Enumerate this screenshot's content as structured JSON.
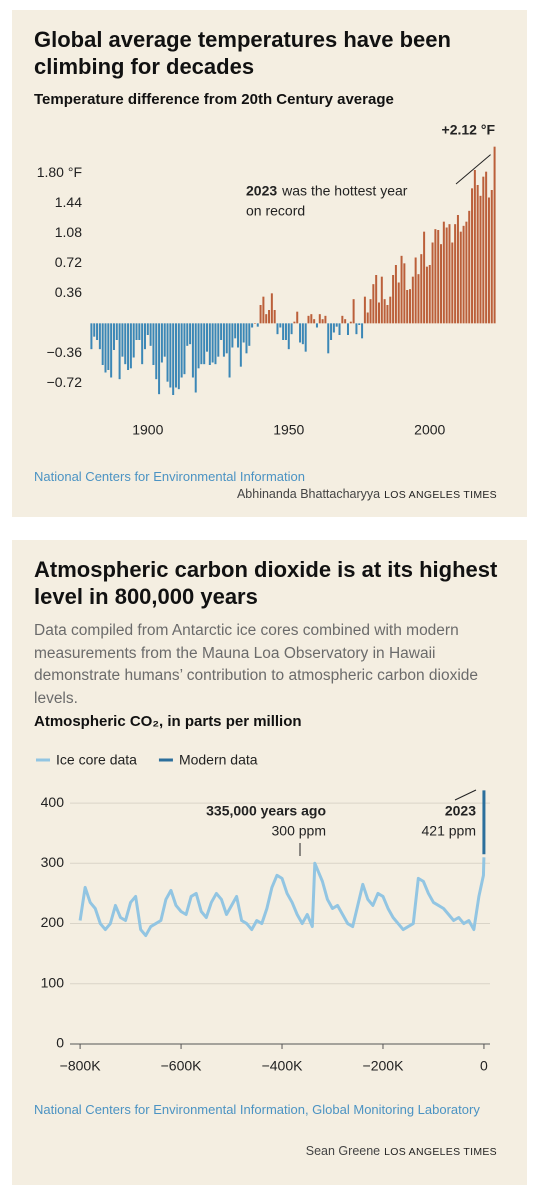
{
  "chart_data": [
    {
      "type": "bar",
      "title": "Global average temperatures have been climbing for decades",
      "subtitle": "Temperature difference from 20th Century average",
      "x": [
        1880,
        1881,
        1882,
        1883,
        1884,
        1885,
        1886,
        1887,
        1888,
        1889,
        1890,
        1891,
        1892,
        1893,
        1894,
        1895,
        1896,
        1897,
        1898,
        1899,
        1900,
        1901,
        1902,
        1903,
        1904,
        1905,
        1906,
        1907,
        1908,
        1909,
        1910,
        1911,
        1912,
        1913,
        1914,
        1915,
        1916,
        1917,
        1918,
        1919,
        1920,
        1921,
        1922,
        1923,
        1924,
        1925,
        1926,
        1927,
        1928,
        1929,
        1930,
        1931,
        1932,
        1933,
        1934,
        1935,
        1936,
        1937,
        1938,
        1939,
        1940,
        1941,
        1942,
        1943,
        1944,
        1945,
        1946,
        1947,
        1948,
        1949,
        1950,
        1951,
        1952,
        1953,
        1954,
        1955,
        1956,
        1957,
        1958,
        1959,
        1960,
        1961,
        1962,
        1963,
        1964,
        1965,
        1966,
        1967,
        1968,
        1969,
        1970,
        1971,
        1972,
        1973,
        1974,
        1975,
        1976,
        1977,
        1978,
        1979,
        1980,
        1981,
        1982,
        1983,
        1984,
        1985,
        1986,
        1987,
        1988,
        1989,
        1990,
        1991,
        1992,
        1993,
        1994,
        1995,
        1996,
        1997,
        1998,
        1999,
        2000,
        2001,
        2002,
        2003,
        2004,
        2005,
        2006,
        2007,
        2008,
        2009,
        2010,
        2011,
        2012,
        2013,
        2014,
        2015,
        2016,
        2017,
        2018,
        2019,
        2020,
        2021,
        2022,
        2023
      ],
      "values": [
        -0.31,
        -0.16,
        -0.2,
        -0.31,
        -0.5,
        -0.59,
        -0.56,
        -0.65,
        -0.32,
        -0.2,
        -0.67,
        -0.4,
        -0.49,
        -0.56,
        -0.54,
        -0.41,
        -0.2,
        -0.2,
        -0.49,
        -0.31,
        -0.14,
        -0.27,
        -0.5,
        -0.67,
        -0.85,
        -0.47,
        -0.4,
        -0.7,
        -0.77,
        -0.86,
        -0.77,
        -0.79,
        -0.65,
        -0.61,
        -0.27,
        -0.25,
        -0.65,
        -0.83,
        -0.54,
        -0.49,
        -0.49,
        -0.34,
        -0.5,
        -0.47,
        -0.49,
        -0.4,
        -0.2,
        -0.4,
        -0.36,
        -0.65,
        -0.29,
        -0.18,
        -0.29,
        -0.52,
        -0.23,
        -0.36,
        -0.27,
        -0.05,
        0,
        -0.04,
        0.22,
        0.32,
        0.11,
        0.16,
        0.36,
        0.16,
        -0.13,
        -0.05,
        -0.2,
        -0.2,
        -0.31,
        -0.13,
        0.02,
        0.14,
        -0.23,
        -0.25,
        -0.34,
        0.09,
        0.11,
        0.05,
        -0.05,
        0.11,
        0.05,
        0.09,
        -0.36,
        -0.2,
        -0.11,
        -0.04,
        -0.14,
        0.09,
        0.05,
        -0.14,
        0.02,
        0.29,
        -0.13,
        -0.02,
        -0.18,
        0.32,
        0.13,
        0.29,
        0.47,
        0.58,
        0.25,
        0.56,
        0.29,
        0.22,
        0.32,
        0.58,
        0.7,
        0.49,
        0.81,
        0.72,
        0.4,
        0.41,
        0.56,
        0.79,
        0.59,
        0.83,
        1.1,
        0.68,
        0.7,
        0.97,
        1.13,
        1.12,
        0.95,
        1.22,
        1.15,
        1.19,
        0.97,
        1.19,
        1.3,
        1.1,
        1.17,
        1.22,
        1.35,
        1.62,
        1.84,
        1.66,
        1.53,
        1.76,
        1.82,
        1.51,
        1.6,
        2.12
      ],
      "colors": {
        "positive": "#bb5f3a",
        "negative": "#3b87b6"
      },
      "xlim": [
        1879.5,
        2023.5
      ],
      "xticks": [
        1900,
        1950,
        2000
      ],
      "ylim": [
        -0.92,
        2.2
      ],
      "yticks": [
        {
          "value": 1.8,
          "label": "1.80 °F"
        },
        1.44,
        1.08,
        0.72,
        0.36,
        {
          "value": -0.36,
          "label": "−0.36"
        },
        {
          "value": -0.72,
          "label": "−0.72"
        }
      ],
      "grid": false,
      "peak_label": "+2.12 °F",
      "annotation": {
        "bold": "2023",
        "lines": [
          "was the hottest year",
          "on record"
        ]
      },
      "source": "National Centers for Environmental Information",
      "credit": "Abhinanda Bhattacharyya",
      "publisher": "LOS ANGELES TIMES"
    },
    {
      "type": "line",
      "title": "Atmospheric carbon dioxide is at its highest level in 800,000 years",
      "description": "Data compiled from Antarctic ice cores combined with modern measurements from the Mauna Loa Observatory in Hawaii demonstrate humans’ contribution to atmospheric carbon dioxide levels.",
      "y_label": "Atmospheric CO₂, in parts per million",
      "series": [
        {
          "name": "Ice core data",
          "color": "#92c5e2",
          "x": [
            -800000,
            -790000,
            -780000,
            -770000,
            -760000,
            -750000,
            -740000,
            -730000,
            -720000,
            -710000,
            -700000,
            -690000,
            -680000,
            -670000,
            -660000,
            -650000,
            -640000,
            -630000,
            -620000,
            -610000,
            -600000,
            -590000,
            -580000,
            -570000,
            -560000,
            -550000,
            -540000,
            -530000,
            -520000,
            -510000,
            -500000,
            -490000,
            -480000,
            -470000,
            -460000,
            -450000,
            -440000,
            -430000,
            -420000,
            -410000,
            -400000,
            -390000,
            -380000,
            -370000,
            -360000,
            -350000,
            -340000,
            -335000,
            -320000,
            -310000,
            -300000,
            -290000,
            -280000,
            -270000,
            -260000,
            -250000,
            -240000,
            -230000,
            -220000,
            -210000,
            -200000,
            -190000,
            -180000,
            -170000,
            -160000,
            -150000,
            -140000,
            -130000,
            -120000,
            -110000,
            -100000,
            -90000,
            -80000,
            -70000,
            -60000,
            -50000,
            -40000,
            -30000,
            -20000,
            -10000,
            -1000,
            -70
          ],
          "values": [
            205,
            260,
            235,
            225,
            200,
            190,
            200,
            230,
            210,
            205,
            235,
            245,
            190,
            180,
            195,
            200,
            205,
            240,
            255,
            230,
            220,
            215,
            245,
            250,
            220,
            210,
            235,
            250,
            240,
            215,
            230,
            245,
            205,
            200,
            190,
            205,
            200,
            225,
            260,
            280,
            275,
            250,
            235,
            215,
            200,
            215,
            195,
            300,
            270,
            240,
            225,
            230,
            215,
            200,
            195,
            230,
            265,
            240,
            230,
            250,
            245,
            225,
            210,
            200,
            190,
            195,
            200,
            275,
            270,
            250,
            235,
            230,
            225,
            215,
            205,
            210,
            200,
            205,
            190,
            245,
            280,
            310
          ]
        },
        {
          "name": "Modern data",
          "color": "#2b6f9c",
          "x": [
            -65,
            -40,
            -20,
            0
          ],
          "values": [
            315,
            339,
            370,
            421
          ]
        }
      ],
      "xlim": [
        -820000,
        12000
      ],
      "xticks": [
        {
          "value": -800000,
          "label": "−800K"
        },
        {
          "value": -600000,
          "label": "−600K"
        },
        {
          "value": -400000,
          "label": "−400K"
        },
        {
          "value": -200000,
          "label": "−200K"
        },
        0
      ],
      "ylim": [
        0,
        430
      ],
      "yticks": [
        0,
        100,
        200,
        300,
        400
      ],
      "grid": true,
      "annotations": [
        {
          "title": "335,000 years ago",
          "text": "300 ppm"
        },
        {
          "title": "2023",
          "text": "421 ppm"
        }
      ],
      "source": "National Centers for Environmental Information, Global Monitoring Laboratory",
      "credit": "Sean Greene",
      "publisher": "LOS ANGELES TIMES"
    }
  ]
}
